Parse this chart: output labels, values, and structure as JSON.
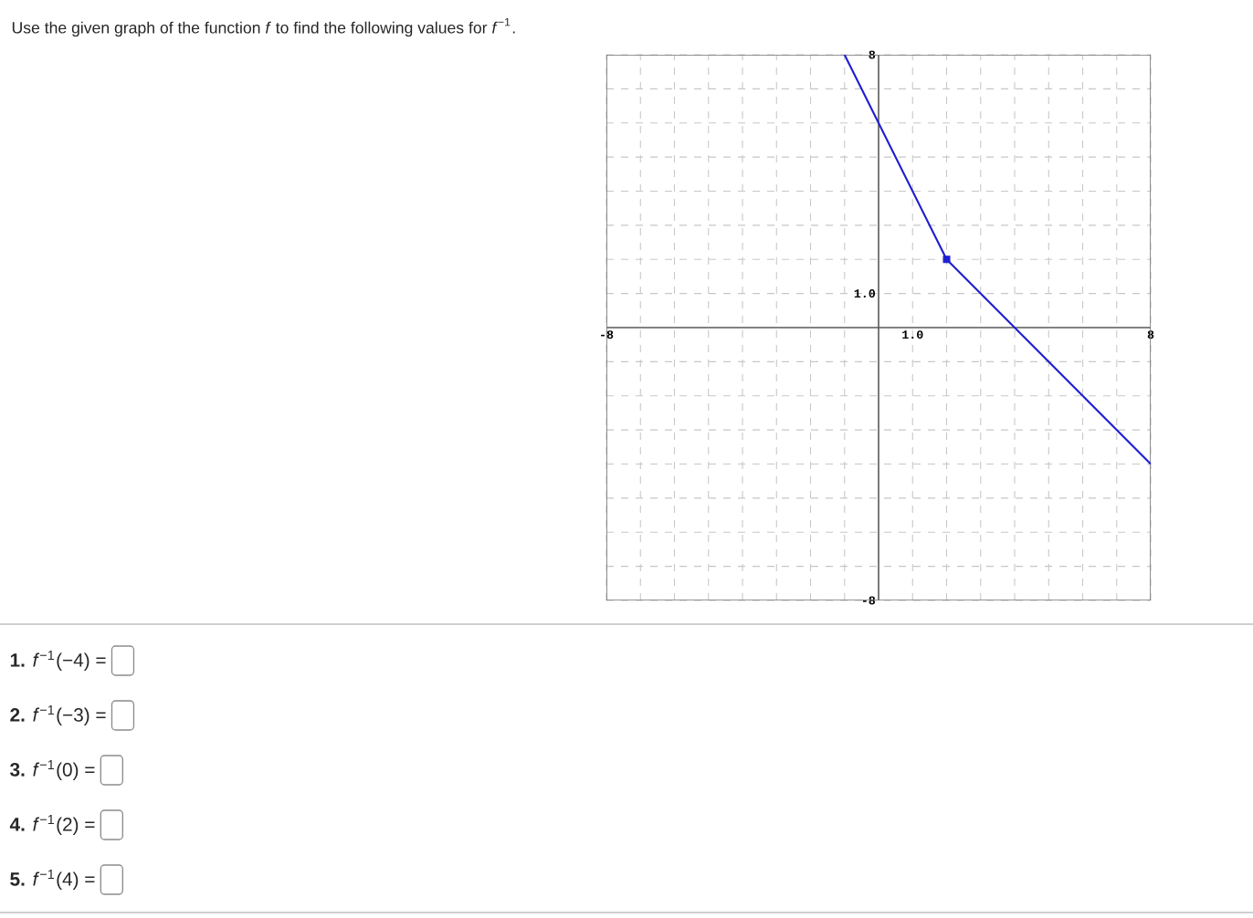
{
  "chart_data": {
    "type": "line",
    "title": "Use the given graph of the function *f* to find the following values for *f*$^{−1}$.",
    "annotations": [
      "**1.** *f*$^{−1}$(−4) =",
      "**2.** *f*$^{−1}$(−3) =",
      "**3.** *f*$^{−1}$(0) =",
      "**4.** *f*$^{−1}$(2) =",
      "**5.** *f*$^{−1}$(4) ="
    ],
    "series": [
      {
        "type": "line",
        "color": "#1f1fd0",
        "x": [
          -1,
          2,
          8
        ],
        "values": [
          8,
          2,
          -4
        ]
      },
      {
        "type": "scatter",
        "marker": "square",
        "color": "#1f1fd0",
        "x": [
          2
        ],
        "values": [
          2
        ]
      }
    ],
    "xlim": [
      -8,
      8
    ],
    "ylim": [
      -8,
      8
    ],
    "xticks": [
      -8,
      {
        "value": -7,
        "label": null
      },
      {
        "value": -6,
        "label": null
      },
      {
        "value": -5,
        "label": null
      },
      {
        "value": -4,
        "label": null
      },
      {
        "value": -3,
        "label": null
      },
      {
        "value": -2,
        "label": null
      },
      {
        "value": -1,
        "label": null
      },
      {
        "value": 0,
        "label": null
      },
      {
        "value": 1,
        "label": "1.0"
      },
      {
        "value": 2,
        "label": null
      },
      {
        "value": 3,
        "label": null
      },
      {
        "value": 4,
        "label": null
      },
      {
        "value": 5,
        "label": null
      },
      {
        "value": 6,
        "label": null
      },
      {
        "value": 7,
        "label": null
      },
      8
    ],
    "yticks": [
      -8,
      {
        "value": -7,
        "label": null
      },
      {
        "value": -6,
        "label": null
      },
      {
        "value": -5,
        "label": null
      },
      {
        "value": -4,
        "label": null
      },
      {
        "value": -3,
        "label": null
      },
      {
        "value": -2,
        "label": null
      },
      {
        "value": -1,
        "label": null
      },
      {
        "value": 0,
        "label": null
      },
      {
        "value": 1,
        "label": "1.0"
      },
      {
        "value": 2,
        "label": null
      },
      {
        "value": 3,
        "label": null
      },
      {
        "value": 4,
        "label": null
      },
      {
        "value": 5,
        "label": null
      },
      {
        "value": 6,
        "label": null
      },
      {
        "value": 7,
        "label": null
      },
      8
    ],
    "grid": true
  }
}
